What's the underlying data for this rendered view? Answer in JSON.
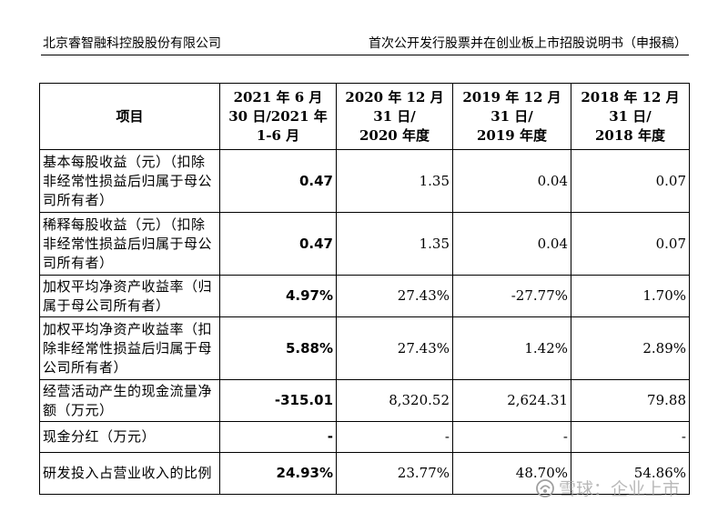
{
  "header": {
    "company": "北京睿智融科控股股份有限公司",
    "document": "首次公开发行股票并在创业板上市招股说明书（申报稿）"
  },
  "table": {
    "columns": [
      {
        "lines": [
          "项目"
        ]
      },
      {
        "lines": [
          "2021 年 6 月",
          "30 日/2021 年",
          "1-6 月"
        ]
      },
      {
        "lines": [
          "2020 年 12 月",
          "31 日/",
          "2020 年度"
        ]
      },
      {
        "lines": [
          "2019 年 12 月",
          "31 日/",
          "2019 年度"
        ]
      },
      {
        "lines": [
          "2018 年 12 月",
          "31 日/",
          "2018 年度"
        ]
      }
    ],
    "rows": [
      {
        "label": "基本每股收益（元）（扣除非经常性损益后归属于母公司所有者）",
        "values": [
          "0.47",
          "1.35",
          "0.04",
          "0.07"
        ]
      },
      {
        "label": "稀释每股收益（元）（扣除非经常性损益后归属于母公司所有者）",
        "values": [
          "0.47",
          "1.35",
          "0.04",
          "0.07"
        ]
      },
      {
        "label": "加权平均净资产收益率（归属于母公司所有者）",
        "values": [
          "4.97%",
          "27.43%",
          "-27.77%",
          "1.70%"
        ]
      },
      {
        "label": "加权平均净资产收益率（扣除非经常性损益后归属于母公司所有者）",
        "values": [
          "5.88%",
          "27.43%",
          "1.42%",
          "2.89%"
        ]
      },
      {
        "label": "经营活动产生的现金流量净额（万元）",
        "values": [
          "-315.01",
          "8,320.52",
          "2,624.31",
          "79.88"
        ]
      },
      {
        "label": "现金分红（万元）",
        "values": [
          "-",
          "-",
          "-",
          "-"
        ]
      },
      {
        "label": "研发投入占营业收入的比例",
        "values": [
          "24.93%",
          "23.77%",
          "48.70%",
          "54.86%"
        ]
      }
    ]
  },
  "watermark": {
    "text": "雪球：企业上市",
    "icon": "snowball-logo-icon",
    "color": "#a0a0a0"
  }
}
